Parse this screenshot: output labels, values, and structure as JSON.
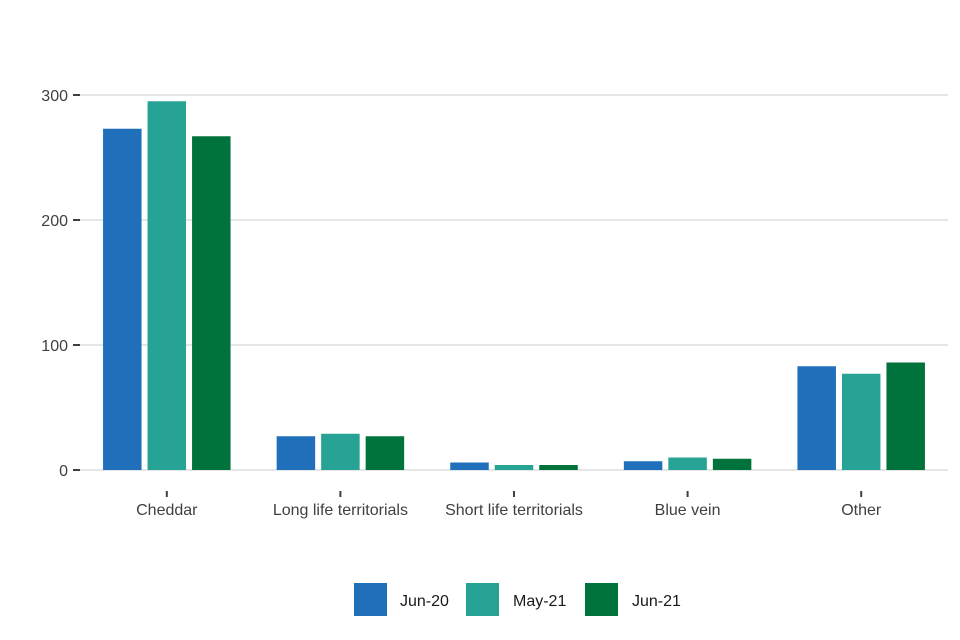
{
  "chart_data": {
    "type": "bar",
    "title": "",
    "xlabel": "",
    "ylabel": "",
    "categories": [
      "Cheddar",
      "Long life territorials",
      "Short life territorials",
      "Blue vein",
      "Other"
    ],
    "series": [
      {
        "name": "Jun-20",
        "color": "#1f6fba",
        "values": [
          273,
          27,
          6,
          7,
          83
        ]
      },
      {
        "name": "May-21",
        "color": "#27a396",
        "values": [
          295,
          29,
          4,
          10,
          77
        ]
      },
      {
        "name": "Jun-21",
        "color": "#00733c",
        "values": [
          267,
          27,
          4,
          9,
          86
        ]
      }
    ],
    "ylim": [
      0,
      300
    ],
    "yticks": [
      0,
      100,
      200,
      300
    ],
    "grid": true,
    "legend_position": "bottom"
  }
}
